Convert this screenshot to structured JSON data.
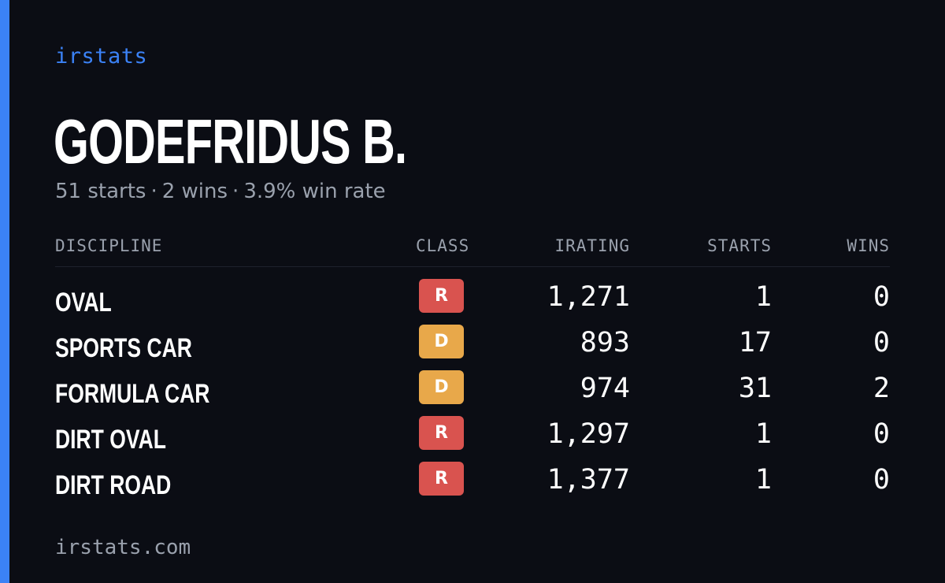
{
  "brand": "irstats",
  "driver": {
    "name": "GODEFRIDUS B.",
    "summary": [
      "51 starts",
      "2 wins",
      "3.9% win rate"
    ],
    "separator": "·"
  },
  "table": {
    "headers": {
      "discipline": "DISCIPLINE",
      "class": "CLASS",
      "irating": "IRATING",
      "starts": "STARTS",
      "wins": "WINS"
    },
    "rows": [
      {
        "discipline": "OVAL",
        "class": "R",
        "class_color": "#d9534f",
        "irating": "1,271",
        "starts": "1",
        "wins": "0"
      },
      {
        "discipline": "SPORTS CAR",
        "class": "D",
        "class_color": "#e8a84a",
        "irating": "893",
        "starts": "17",
        "wins": "0"
      },
      {
        "discipline": "FORMULA CAR",
        "class": "D",
        "class_color": "#e8a84a",
        "irating": "974",
        "starts": "31",
        "wins": "2"
      },
      {
        "discipline": "DIRT OVAL",
        "class": "R",
        "class_color": "#d9534f",
        "irating": "1,297",
        "starts": "1",
        "wins": "0"
      },
      {
        "discipline": "DIRT ROAD",
        "class": "R",
        "class_color": "#d9534f",
        "irating": "1,377",
        "starts": "1",
        "wins": "0"
      }
    ]
  },
  "footer": "irstats.com",
  "colors": {
    "background": "#0b0d14",
    "accent": "#3b82f6",
    "muted": "#9aa1ad"
  }
}
